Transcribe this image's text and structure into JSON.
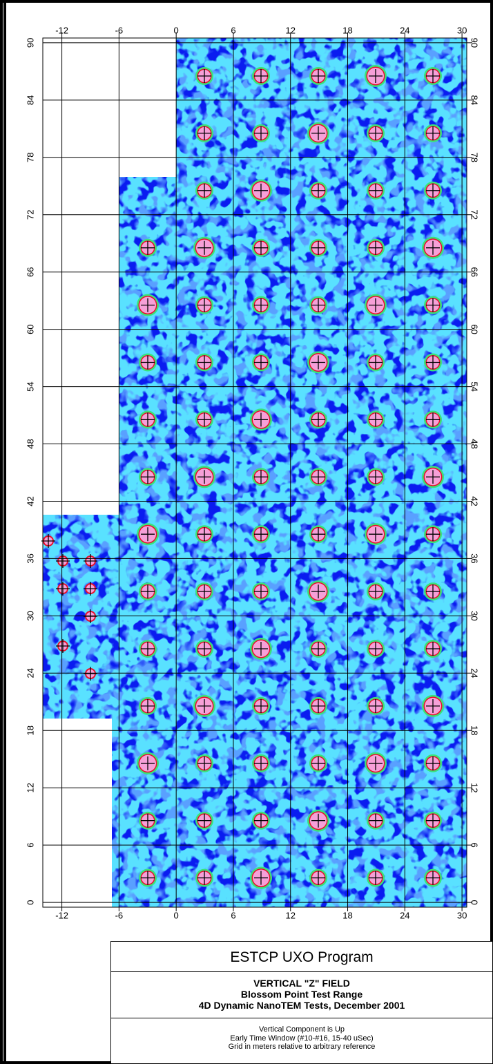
{
  "map": {
    "xlim": [
      -14,
      30.5
    ],
    "ylim": [
      -0.5,
      90.5
    ],
    "xticks": [
      -12,
      -6,
      0,
      6,
      12,
      18,
      24,
      30
    ],
    "yticks": [
      0,
      6,
      12,
      18,
      24,
      30,
      36,
      42,
      48,
      54,
      60,
      66,
      72,
      78,
      84,
      90
    ],
    "grid": true
  },
  "title_block": {
    "program": "ESTCP UXO Program",
    "heading": [
      "VERTICAL \"Z\" FIELD",
      "Blossom Point Test Range",
      "4D Dynamic NanoTEM Tests, December 2001"
    ],
    "notes": [
      "Vertical Component is Up",
      "Early Time Window (#10-#16, 15-40 uSec)",
      "Grid in meters relative to arbitrary reference"
    ]
  }
}
